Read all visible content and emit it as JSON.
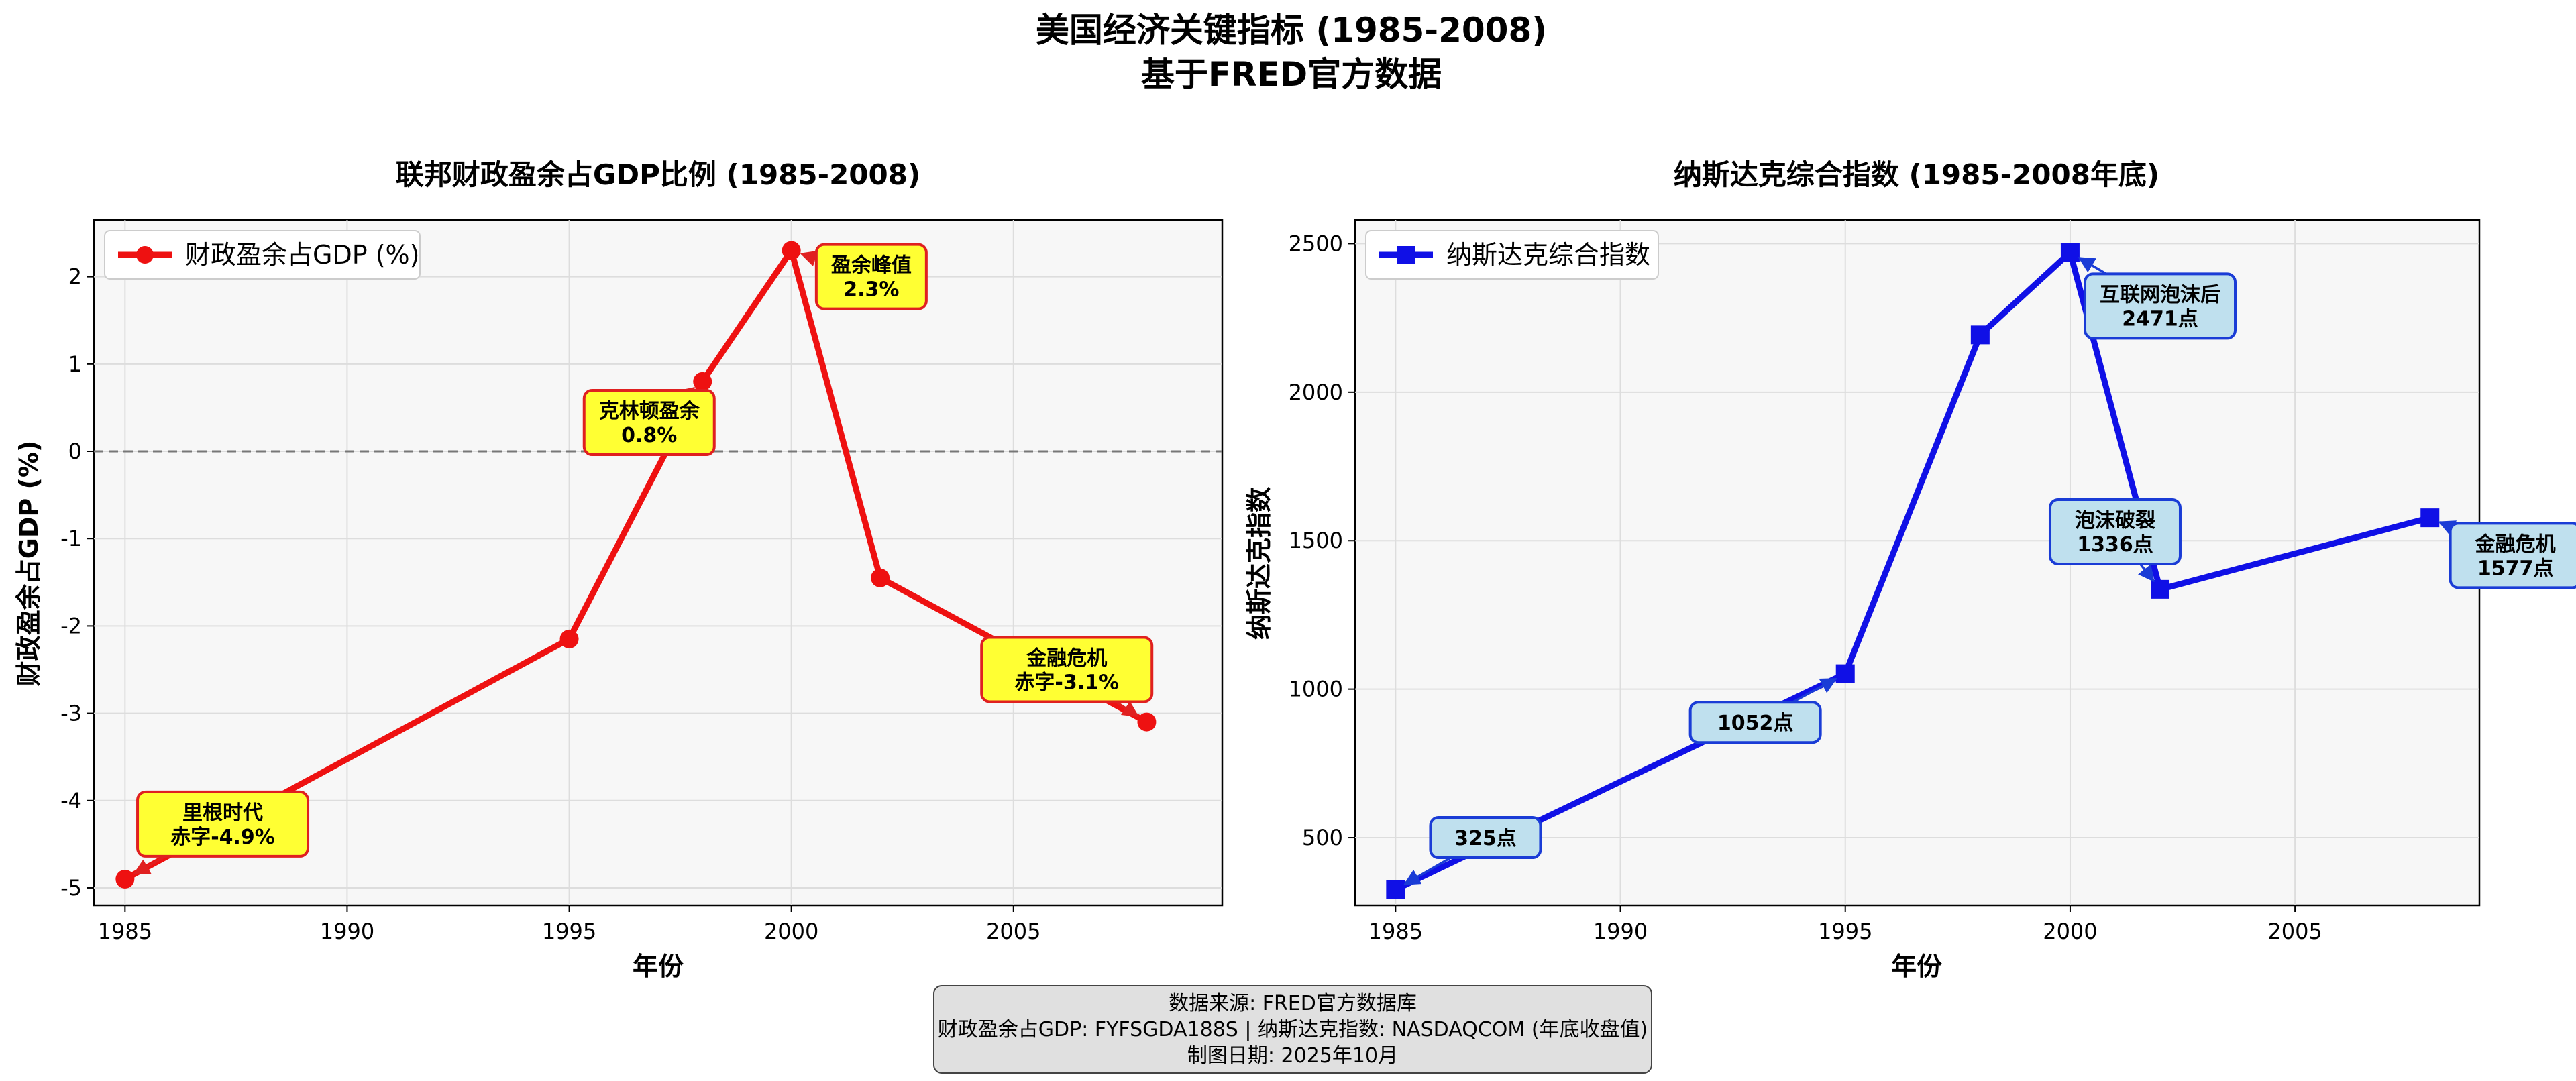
{
  "figure": {
    "title_line1": "美国经济关键指标 (1985-2008)",
    "title_line2": "基于FRED官方数据"
  },
  "source_box": {
    "line1": "数据来源: FRED官方数据库",
    "line2": "财政盈余占GDP: FYFSGDA188S | 纳斯达克指数: NASDAQCOM (年底收盘值)",
    "line3": "制图日期: 2025年10月"
  },
  "colors": {
    "left_series": "#ee1111",
    "right_series": "#1010e6",
    "left_ann_fill": "#ffff33",
    "left_ann_edge": "#e02020",
    "right_ann_fill": "#bfe0ee",
    "right_ann_edge": "#1a3cd6",
    "plot_bg": "#f7f7f7"
  },
  "chart_data": [
    {
      "type": "line",
      "title": "联邦财政盈余占GDP比例 (1985-2008)",
      "xlabel": "年份",
      "ylabel": "财政盈余占GDP (%)",
      "x": [
        1985,
        1995,
        1998,
        2000,
        2002,
        2008
      ],
      "series": [
        {
          "name": "财政盈余占GDP (%)",
          "marker": "circle",
          "values": [
            -4.9,
            -2.15,
            0.8,
            2.3,
            -1.45,
            -3.1
          ]
        }
      ],
      "xlim": [
        1984.3,
        2009.7
      ],
      "ylim": [
        -5.2,
        2.65
      ],
      "xticks": [
        "1985",
        "1990",
        "1995",
        "2000",
        "2005"
      ],
      "yticks": [
        "2",
        "1",
        "0",
        "-1",
        "-2",
        "-3",
        "-4",
        "-5"
      ],
      "reference_line_y": 0,
      "grid": true,
      "legend": "top-left",
      "annotations": [
        {
          "x": 1985,
          "y": -4.9,
          "text_x": 1987.2,
          "text_y": -4.27,
          "line1": "里根时代",
          "line2": "赤字-4.9%"
        },
        {
          "x": 1998,
          "y": 0.8,
          "text_x": 1996.8,
          "text_y": 0.33,
          "line1": "克林顿盈余",
          "line2": "0.8%"
        },
        {
          "x": 2000,
          "y": 2.3,
          "text_x": 2001.8,
          "text_y": 2.0,
          "line1": "盈余峰值",
          "line2": "2.3%"
        },
        {
          "x": 2008,
          "y": -3.1,
          "text_x": 2006.2,
          "text_y": -2.5,
          "line1": "金融危机",
          "line2": "赤字-3.1%"
        }
      ]
    },
    {
      "type": "line",
      "title": "纳斯达克综合指数 (1985-2008年底)",
      "xlabel": "年份",
      "ylabel": "纳斯达克指数",
      "x": [
        1985,
        1995,
        1998,
        2000,
        2002,
        2008
      ],
      "series": [
        {
          "name": "纳斯达克综合指数",
          "marker": "square",
          "values": [
            325,
            1052,
            2193,
            2471,
            1336,
            1577
          ]
        }
      ],
      "xlim": [
        1984.1,
        2009.1
      ],
      "ylim": [
        272,
        2580
      ],
      "xticks": [
        "1985",
        "1990",
        "1995",
        "2000",
        "2005"
      ],
      "yticks": [
        "2500",
        "2000",
        "1500",
        "1000",
        "500"
      ],
      "grid": true,
      "legend": "top-left",
      "annotations": [
        {
          "x": 1985,
          "y": 325,
          "text_x": 1987.0,
          "text_y": 500,
          "line1": "325点",
          "line2": ""
        },
        {
          "x": 1995,
          "y": 1052,
          "text_x": 1993.0,
          "text_y": 888,
          "line1": "1052点",
          "line2": ""
        },
        {
          "x": 2000,
          "y": 2471,
          "text_x": 2002.0,
          "text_y": 2290,
          "line1": "互联网泡沫后",
          "line2": "2471点"
        },
        {
          "x": 2002,
          "y": 1336,
          "text_x": 2001.0,
          "text_y": 1530,
          "line1": "泡沫破裂",
          "line2": "1336点"
        },
        {
          "x": 2008,
          "y": 1577,
          "text_x": 2009.9,
          "text_y": 1450,
          "line1": "金融危机",
          "line2": "1577点"
        }
      ]
    }
  ]
}
